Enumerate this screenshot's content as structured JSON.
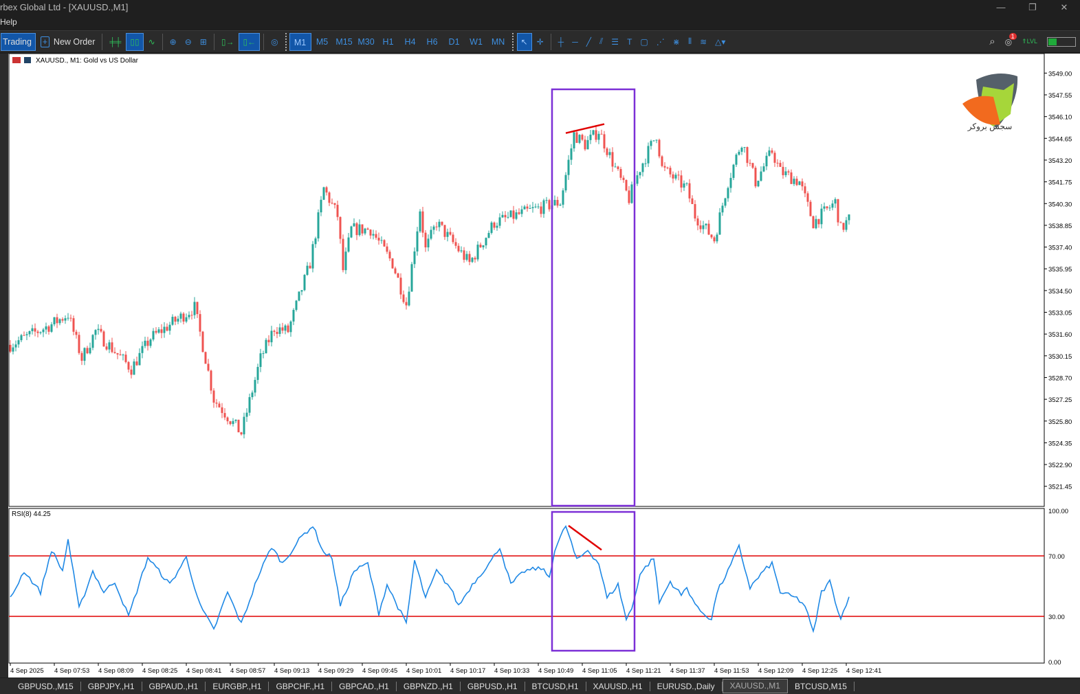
{
  "window": {
    "title": "rbex Global Ltd - [XAUUSD.,M1]",
    "controls": [
      "—",
      "❐",
      "✕"
    ]
  },
  "menu": {
    "items": [
      "Help"
    ]
  },
  "toolbar": {
    "algo_trading": "Trading",
    "new_order": "New Order",
    "timeframes": [
      "M1",
      "M5",
      "M15",
      "M30",
      "H1",
      "H4",
      "H6",
      "D1",
      "W1",
      "MN"
    ],
    "active_timeframe": "M1",
    "notifications_count": "1"
  },
  "chart": {
    "header": "XAUUSD., M1:  Gold vs US Dollar",
    "logo_text": "سجس بروکر",
    "price_ticks": [
      "3549.00",
      "3547.55",
      "3546.10",
      "3544.65",
      "3543.20",
      "3541.75",
      "3540.30",
      "3538.85",
      "3537.40",
      "3535.95",
      "3534.50",
      "3533.05",
      "3531.60",
      "3530.15",
      "3528.70",
      "3527.25",
      "3525.80",
      "3524.35",
      "3522.90",
      "3521.45"
    ],
    "time_ticks": [
      "4 Sep 2025",
      "4 Sep 07:53",
      "4 Sep 08:09",
      "4 Sep 08:25",
      "4 Sep 08:41",
      "4 Sep 08:57",
      "4 Sep 09:13",
      "4 Sep 09:29",
      "4 Sep 09:45",
      "4 Sep 10:01",
      "4 Sep 10:17",
      "4 Sep 10:33",
      "4 Sep 10:49",
      "4 Sep 11:05",
      "4 Sep 11:21",
      "4 Sep 11:37",
      "4 Sep 11:53",
      "4 Sep 12:09",
      "4 Sep 12:25",
      "4 Sep 12:41"
    ],
    "rsi_label": "RSI(8) 44.25",
    "rsi_ticks": [
      "100.00",
      "70.00",
      "30.00",
      "0.00"
    ]
  },
  "chart_data": {
    "type": "candlestick",
    "symbol": "XAUUSD.",
    "timeframe": "M1",
    "first_bar": "07:37",
    "last_bar": "12:42",
    "ylim": [
      3520.2,
      3550.3
    ],
    "bull_color": "#26a69a",
    "bear_color": "#ef5350",
    "close_keypoints": [
      [
        "07:37",
        3530.88
      ],
      [
        "07:52",
        3532.24
      ],
      [
        "07:58",
        3532.92
      ],
      [
        "08:03",
        3529.97
      ],
      [
        "08:08",
        3531.79
      ],
      [
        "08:21",
        3529.29
      ],
      [
        "08:28",
        3531.33
      ],
      [
        "08:44",
        3533.37
      ],
      [
        "08:48",
        3529.97
      ],
      [
        "08:51",
        3527.26
      ],
      [
        "09:01",
        3524.99
      ],
      [
        "09:08",
        3529.97
      ],
      [
        "09:13",
        3532.01
      ],
      [
        "09:18",
        3531.79
      ],
      [
        "09:26",
        3536.32
      ],
      [
        "09:31",
        3541.3
      ],
      [
        "09:36",
        3539.49
      ],
      [
        "09:38",
        3535.86
      ],
      [
        "09:41",
        3538.58
      ],
      [
        "09:48",
        3538.58
      ],
      [
        "09:56",
        3536.32
      ],
      [
        "10:01",
        3533.6
      ],
      [
        "10:06",
        3539.94
      ],
      [
        "10:08",
        3537.22
      ],
      [
        "10:12",
        3539.03
      ],
      [
        "10:24",
        3536.32
      ],
      [
        "10:33",
        3539.03
      ],
      [
        "10:48",
        3539.94
      ],
      [
        "10:57",
        3540.39
      ],
      [
        "11:02",
        3544.92
      ],
      [
        "11:06",
        3544.24
      ],
      [
        "11:11",
        3545.15
      ],
      [
        "11:17",
        3542.66
      ],
      [
        "11:22",
        3540.62
      ],
      [
        "11:26",
        3542.66
      ],
      [
        "11:32",
        3544.92
      ],
      [
        "11:34",
        3542.66
      ],
      [
        "11:43",
        3541.3
      ],
      [
        "11:46",
        3539.49
      ],
      [
        "11:53",
        3537.9
      ],
      [
        "11:58",
        3541.75
      ],
      [
        "12:03",
        3544.47
      ],
      [
        "12:08",
        3541.75
      ],
      [
        "12:14",
        3543.79
      ],
      [
        "12:17",
        3542.43
      ],
      [
        "12:24",
        3541.75
      ],
      [
        "12:29",
        3539.03
      ],
      [
        "12:37",
        3540.39
      ],
      [
        "12:39",
        3538.58
      ],
      [
        "12:42",
        3539.26
      ]
    ],
    "rsi": {
      "period": 8,
      "levels": [
        70,
        30
      ],
      "ylim": [
        0,
        100
      ],
      "color": "#1e88e5",
      "level_color": "#e00000",
      "keypoints": [
        [
          "07:37",
          41.7
        ],
        [
          "07:42",
          60
        ],
        [
          "07:48",
          46
        ],
        [
          "07:52",
          74
        ],
        [
          "07:56",
          60
        ],
        [
          "07:58",
          81
        ],
        [
          "08:02",
          35
        ],
        [
          "08:07",
          60
        ],
        [
          "08:11",
          46
        ],
        [
          "08:15",
          53
        ],
        [
          "08:20",
          30
        ],
        [
          "08:27",
          69
        ],
        [
          "08:31",
          60
        ],
        [
          "08:35",
          51
        ],
        [
          "08:41",
          69
        ],
        [
          "08:46",
          37
        ],
        [
          "08:51",
          21
        ],
        [
          "08:56",
          46
        ],
        [
          "09:01",
          25
        ],
        [
          "09:07",
          56
        ],
        [
          "09:12",
          76
        ],
        [
          "09:16",
          65
        ],
        [
          "09:23",
          83
        ],
        [
          "09:27",
          90
        ],
        [
          "09:31",
          72
        ],
        [
          "09:34",
          69
        ],
        [
          "09:37",
          37
        ],
        [
          "09:42",
          60
        ],
        [
          "09:47",
          65
        ],
        [
          "09:51",
          32
        ],
        [
          "09:54",
          51
        ],
        [
          "10:01",
          25
        ],
        [
          "10:04",
          67
        ],
        [
          "10:08",
          42
        ],
        [
          "10:12",
          60
        ],
        [
          "10:17",
          49
        ],
        [
          "10:20",
          37
        ],
        [
          "10:25",
          51
        ],
        [
          "10:32",
          67
        ],
        [
          "10:35",
          76
        ],
        [
          "10:39",
          51
        ],
        [
          "10:44",
          60
        ],
        [
          "10:50",
          62
        ],
        [
          "10:53",
          56
        ],
        [
          "10:55",
          74
        ],
        [
          "10:59",
          90
        ],
        [
          "11:03",
          67
        ],
        [
          "11:07",
          74
        ],
        [
          "11:11",
          65
        ],
        [
          "11:14",
          42
        ],
        [
          "11:18",
          51
        ],
        [
          "11:21",
          28
        ],
        [
          "11:23",
          35
        ],
        [
          "11:26",
          58
        ],
        [
          "11:31",
          69
        ],
        [
          "11:33",
          39
        ],
        [
          "11:37",
          53
        ],
        [
          "11:41",
          44
        ],
        [
          "11:43",
          49
        ],
        [
          "11:47",
          35
        ],
        [
          "11:52",
          28
        ],
        [
          "11:54",
          46
        ],
        [
          "11:58",
          60
        ],
        [
          "12:02",
          76
        ],
        [
          "12:06",
          49
        ],
        [
          "12:11",
          60
        ],
        [
          "12:14",
          65
        ],
        [
          "12:17",
          46
        ],
        [
          "12:23",
          42
        ],
        [
          "12:26",
          37
        ],
        [
          "12:29",
          19
        ],
        [
          "12:32",
          46
        ],
        [
          "12:35",
          53
        ],
        [
          "12:39",
          28
        ],
        [
          "12:42",
          44
        ]
      ]
    },
    "annotations": [
      {
        "type": "rectangle",
        "color": "#7b2fd6",
        "from": "10:54",
        "to": "11:24",
        "pane": "price"
      },
      {
        "type": "rectangle",
        "color": "#7b2fd6",
        "from": "10:54",
        "to": "11:24",
        "pane": "rsi"
      },
      {
        "type": "trendline",
        "color": "#e00000",
        "pane": "price",
        "p1": [
          "10:59",
          3545.0
        ],
        "p2": [
          "11:13",
          3545.6
        ]
      },
      {
        "type": "trendline",
        "color": "#e00000",
        "pane": "rsi",
        "p1": [
          "11:00",
          90
        ],
        "p2": [
          "11:12",
          74
        ]
      }
    ]
  },
  "tabs": [
    "GBPUSD.,M15",
    "GBPJPY.,H1",
    "GBPAUD.,H1",
    "EURGBP.,H1",
    "GBPCHF.,H1",
    "GBPCAD.,H1",
    "GBPNZD.,H1",
    "GBPUSD.,H1",
    "BTCUSD,H1",
    "XAUUSD.,H1",
    "EURUSD.,Daily",
    "XAUUSD.,M1",
    "BTCUSD,M15"
  ],
  "active_tab": "XAUUSD.,M1"
}
